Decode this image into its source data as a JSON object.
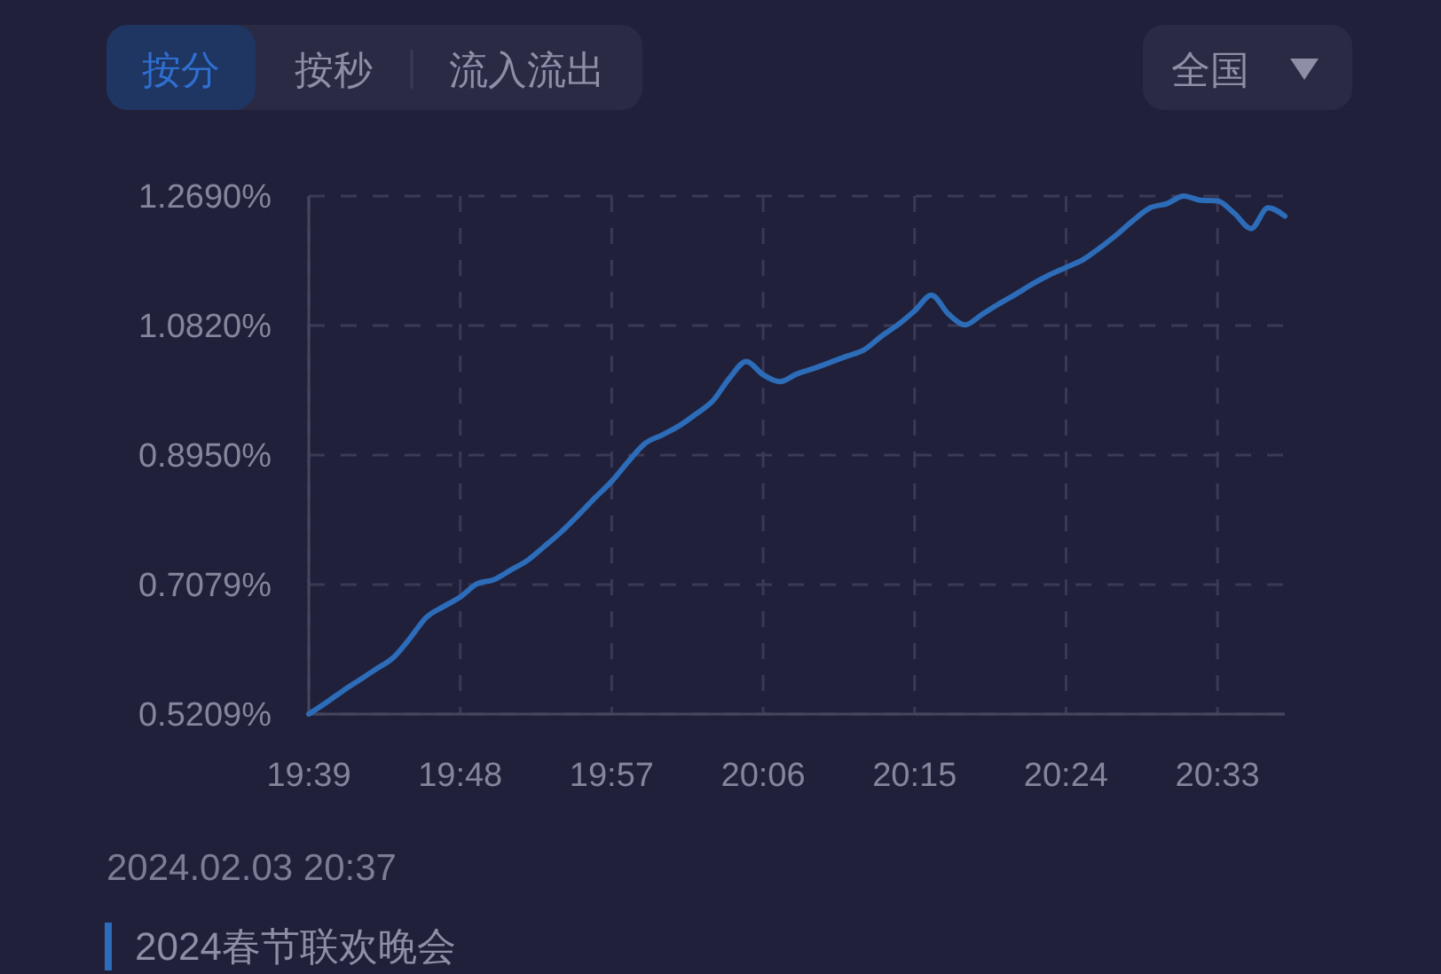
{
  "chart_data": {
    "type": "line",
    "title": "2024春节联欢晚会",
    "subtitle": "2024.02.03 20:37",
    "annotations": [
      "按分",
      "按秒",
      "流入流出",
      "全国"
    ],
    "x": [
      19.65,
      19.6667,
      19.6833,
      19.7,
      19.7167,
      19.7333,
      19.75,
      19.7667,
      19.7833,
      19.8,
      19.8167,
      19.8333,
      19.85,
      19.8667,
      19.8833,
      19.9,
      19.9167,
      19.9333,
      19.95,
      19.9667,
      19.9833,
      20.0,
      20.0167,
      20.0333,
      20.05,
      20.0667,
      20.0833,
      20.1,
      20.1167,
      20.1333,
      20.15,
      20.1667,
      20.1833,
      20.2,
      20.2167,
      20.2333,
      20.25,
      20.2667,
      20.2833,
      20.3,
      20.3167,
      20.3333,
      20.35,
      20.3667,
      20.3833,
      20.4,
      20.4167,
      20.4333,
      20.45,
      20.4667,
      20.4833,
      20.5,
      20.5167,
      20.5333,
      20.55,
      20.5667,
      20.5833,
      20.6,
      20.6167
    ],
    "values": [
      0.521,
      0.537,
      0.554,
      0.57,
      0.586,
      0.602,
      0.63,
      0.661,
      0.676,
      0.69,
      0.709,
      0.715,
      0.729,
      0.743,
      0.763,
      0.784,
      0.808,
      0.833,
      0.857,
      0.886,
      0.912,
      0.924,
      0.937,
      0.954,
      0.973,
      1.006,
      1.03,
      1.011,
      1.001,
      1.012,
      1.02,
      1.029,
      1.038,
      1.047,
      1.066,
      1.083,
      1.103,
      1.126,
      1.099,
      1.083,
      1.098,
      1.113,
      1.127,
      1.142,
      1.155,
      1.166,
      1.177,
      1.194,
      1.213,
      1.234,
      1.252,
      1.258,
      1.269,
      1.263,
      1.262,
      1.244,
      1.222,
      1.252,
      1.24
    ],
    "color": "#2c6cb8",
    "xlim": [
      19.65,
      20.6167
    ],
    "xticks": [
      {
        "value": 19.65,
        "label": "19:39"
      },
      {
        "value": 19.8,
        "label": "19:48"
      },
      {
        "value": 19.95,
        "label": "19:57"
      },
      {
        "value": 20.1,
        "label": "20:06"
      },
      {
        "value": 20.25,
        "label": "20:15"
      },
      {
        "value": 20.4,
        "label": "20:24"
      },
      {
        "value": 20.55,
        "label": "20:33"
      }
    ],
    "ylim": [
      0.5209,
      1.269
    ],
    "yticks": [
      {
        "value": 0.5209,
        "label": "0.5209%"
      },
      {
        "value": 0.7079,
        "label": "0.7079%"
      },
      {
        "value": 0.895,
        "label": "0.8950%"
      },
      {
        "value": 1.082,
        "label": "1.0820%"
      },
      {
        "value": 1.269,
        "label": "1.2690%"
      }
    ],
    "grid": true
  }
}
